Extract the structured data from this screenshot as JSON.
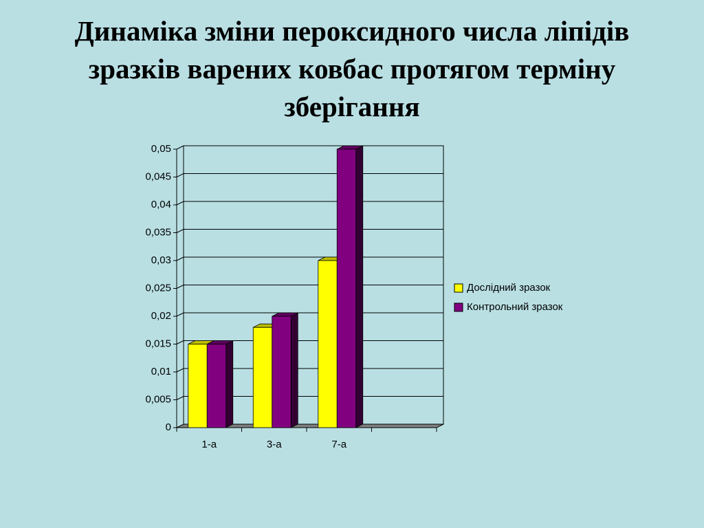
{
  "chart_data": {
    "type": "bar3d",
    "title": "Динаміка зміни пероксидного числа ліпідів зразків варених ковбас протягом терміну зберігання",
    "categories": [
      "1-а",
      "3-а",
      "7-а",
      null
    ],
    "series": [
      {
        "name": "Дослідний зразок",
        "color": "#ffff00",
        "values": [
          0.015,
          0.018,
          0.03,
          null
        ]
      },
      {
        "name": "Контрольний зразок",
        "color": "#800080",
        "values": [
          0.015,
          0.02,
          0.05,
          null
        ]
      }
    ],
    "ylim": [
      0,
      0.05
    ],
    "yticks": [
      0,
      {
        "value": 0.005,
        "label": "0,005"
      },
      {
        "value": 0.01,
        "label": "0,01"
      },
      {
        "value": 0.015,
        "label": "0,015"
      },
      {
        "value": 0.02,
        "label": "0,02"
      },
      {
        "value": 0.025,
        "label": "0,025"
      },
      {
        "value": 0.03,
        "label": "0,03"
      },
      {
        "value": 0.035,
        "label": "0,035"
      },
      {
        "value": 0.04,
        "label": "0,04"
      },
      {
        "value": 0.045,
        "label": "0,045"
      },
      {
        "value": 0.05,
        "label": "0,05"
      }
    ],
    "grid": true,
    "legend": "right"
  }
}
